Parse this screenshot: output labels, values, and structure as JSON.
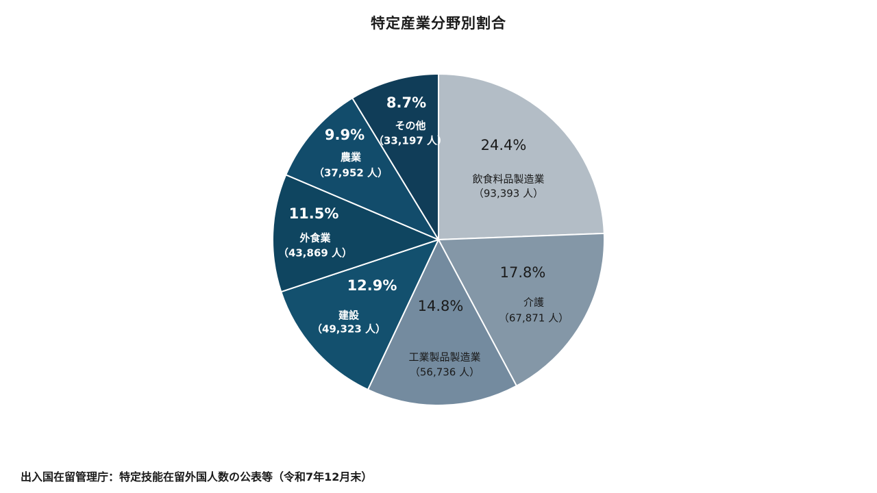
{
  "source_note": "出入国在留管理庁：特定技能在留外国人数の公表等（令和7年12月末）",
  "chart_data": {
    "type": "pie",
    "title": "特定産業分野別割合",
    "start_angle_deg": 0,
    "direction": "clockwise",
    "slices": [
      {
        "name": "飲食料品製造業",
        "count": "（93,393 人）",
        "percent_label": "24.4%",
        "value": 24.4,
        "color": "#b3bdc6",
        "text_color": "#1a1a1a",
        "bold": false
      },
      {
        "name": "介護",
        "count": "（67,871 人）",
        "percent_label": "17.8%",
        "value": 17.8,
        "color": "#8497a7",
        "text_color": "#1a1a1a",
        "bold": false
      },
      {
        "name": "工業製品製造業",
        "count": "（56,736 人）",
        "percent_label": "14.8%",
        "value": 14.8,
        "color": "#748b9f",
        "text_color": "#1a1a1a",
        "bold": false
      },
      {
        "name": "建設",
        "count": "（49,323 人）",
        "percent_label": "12.9%",
        "value": 12.9,
        "color": "#13506e",
        "text_color": "#ffffff",
        "bold": true
      },
      {
        "name": "外食業",
        "count": "（43,869 人）",
        "percent_label": "11.5%",
        "value": 11.5,
        "color": "#0f4560",
        "text_color": "#ffffff",
        "bold": true
      },
      {
        "name": "農業",
        "count": "（37,952 人）",
        "percent_label": "9.9%",
        "value": 9.9,
        "color": "#124c6b",
        "text_color": "#ffffff",
        "bold": true
      },
      {
        "name": "その他",
        "count": "（33,197 人）",
        "percent_label": "8.7%",
        "value": 8.7,
        "color": "#103d58",
        "text_color": "#ffffff",
        "bold": true
      }
    ]
  }
}
